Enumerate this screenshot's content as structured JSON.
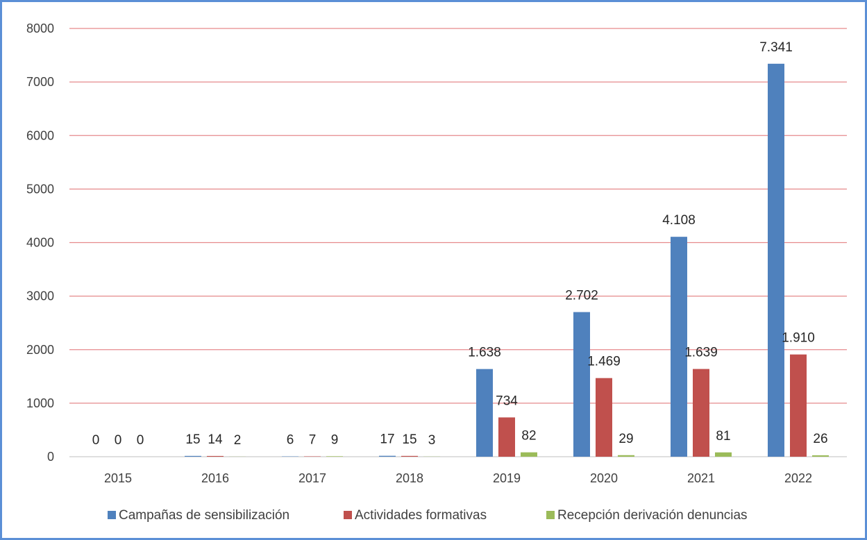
{
  "chart_data": {
    "type": "bar",
    "categories": [
      "2015",
      "2016",
      "2017",
      "2018",
      "2019",
      "2020",
      "2021",
      "2022"
    ],
    "series": [
      {
        "name": "Campañas de sensibilización",
        "color": "#4f81bd",
        "values": [
          0,
          15,
          6,
          17,
          1638,
          2702,
          4108,
          7341
        ],
        "labels": [
          "0",
          "15",
          "6",
          "17",
          "1.638",
          "2.702",
          "4.108",
          "7.341"
        ]
      },
      {
        "name": "Actividades formativas",
        "color": "#c0504d",
        "values": [
          0,
          14,
          7,
          15,
          734,
          1469,
          1639,
          1910
        ],
        "labels": [
          "0",
          "14",
          "7",
          "15",
          "734",
          "1.469",
          "1.639",
          "1.910"
        ]
      },
      {
        "name": "Recepción derivación denuncias",
        "color": "#9bbb59",
        "values": [
          0,
          2,
          9,
          3,
          82,
          29,
          81,
          26
        ],
        "labels": [
          "0",
          "2",
          "9",
          "3",
          "82",
          "29",
          "81",
          "26"
        ]
      }
    ],
    "ylim": [
      0,
      8000
    ],
    "yticks": [
      "0",
      "1000",
      "2000",
      "3000",
      "4000",
      "5000",
      "6000",
      "7000",
      "8000"
    ],
    "gridline_color": "#e6898b",
    "grid": true,
    "legend_position": "bottom",
    "frame_color": "#5b8fd6"
  }
}
